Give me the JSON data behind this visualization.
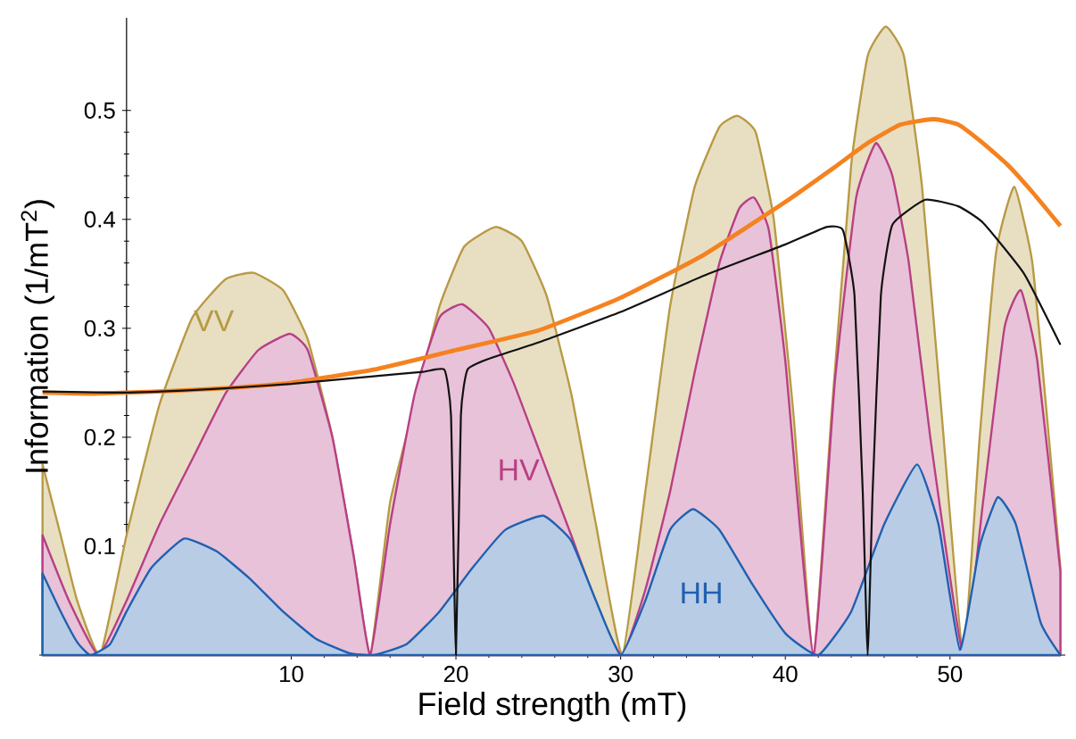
{
  "chart_data": {
    "type": "area",
    "xlabel": "Field strength (mT)",
    "ylabel": "Information (1/mT$^{2}$)",
    "xlim": [
      -5.3,
      57
    ],
    "ylim": [
      0,
      0.585
    ],
    "xticks": [
      10,
      20,
      30,
      40,
      50
    ],
    "yticks": [
      0.1,
      0.2,
      0.3,
      0.4,
      0.5
    ],
    "legend": false,
    "series": [
      {
        "name": "VV",
        "type": "area",
        "color": "#b89a45",
        "x": [
          -5.1,
          -4,
          -3,
          -1.6,
          0,
          2,
          4,
          6,
          7.7,
          9.5,
          11,
          12.5,
          13.8,
          14.8,
          16,
          17.5,
          19,
          20.5,
          22.4,
          24,
          25.5,
          27,
          28.5,
          30.1,
          31.5,
          33,
          34.5,
          36,
          37.1,
          38.2,
          39.3,
          40.5,
          41.7,
          42.8,
          44,
          45,
          46.1,
          47.2,
          48.3,
          49.5,
          50.8,
          51.8,
          52.8,
          53.9,
          55,
          56,
          56.7
        ],
        "values": [
          0.175,
          0.11,
          0.05,
          0,
          0.11,
          0.23,
          0.31,
          0.345,
          0.351,
          0.335,
          0.29,
          0.2,
          0.09,
          0,
          0.14,
          0.23,
          0.32,
          0.375,
          0.393,
          0.38,
          0.33,
          0.24,
          0.12,
          0,
          0.15,
          0.32,
          0.43,
          0.485,
          0.495,
          0.48,
          0.4,
          0.22,
          0,
          0.22,
          0.45,
          0.55,
          0.577,
          0.55,
          0.43,
          0.22,
          0,
          0.2,
          0.37,
          0.43,
          0.36,
          0.2,
          0.08
        ]
      },
      {
        "name": "HV",
        "type": "area",
        "color": "#b83f86",
        "x": [
          -5.1,
          -3.5,
          -1.7,
          0,
          2,
          4,
          6,
          8,
          9.9,
          11,
          12.5,
          13.8,
          14.8,
          16,
          17.5,
          19,
          20.4,
          22,
          23.5,
          25,
          27,
          28.7,
          30.1,
          31.5,
          33,
          34.5,
          36,
          37.2,
          38.1,
          39,
          40,
          41.7,
          43,
          44.3,
          45.5,
          46.5,
          47.5,
          48.8,
          50.8,
          52,
          53.3,
          54.3,
          55.3,
          56.7
        ],
        "values": [
          0.11,
          0.05,
          0,
          0.05,
          0.12,
          0.18,
          0.24,
          0.28,
          0.295,
          0.28,
          0.2,
          0.09,
          0,
          0.12,
          0.24,
          0.31,
          0.322,
          0.3,
          0.25,
          0.19,
          0.11,
          0.04,
          0,
          0.06,
          0.15,
          0.26,
          0.36,
          0.41,
          0.42,
          0.39,
          0.27,
          0,
          0.25,
          0.42,
          0.47,
          0.44,
          0.36,
          0.2,
          0,
          0.14,
          0.3,
          0.335,
          0.27,
          0.077
        ]
      },
      {
        "name": "HH",
        "type": "area",
        "color": "#2060b0",
        "x": [
          -5.1,
          -4,
          -3,
          -2.2,
          -1,
          0,
          1.5,
          3.5,
          5.5,
          7.5,
          9.5,
          11.5,
          13.5,
          15,
          17,
          19,
          21,
          23,
          25.3,
          27,
          28.5,
          30,
          31.5,
          33,
          34.4,
          36,
          38,
          40,
          42,
          44,
          46,
          48,
          49.3,
          50.6,
          51.8,
          52.9,
          54,
          55.5,
          56.7
        ],
        "values": [
          0.075,
          0.04,
          0.012,
          0,
          0.01,
          0.04,
          0.08,
          0.107,
          0.095,
          0.07,
          0.04,
          0.015,
          0.002,
          0,
          0.01,
          0.04,
          0.08,
          0.115,
          0.128,
          0.105,
          0.05,
          0,
          0.05,
          0.115,
          0.134,
          0.115,
          0.065,
          0.02,
          0,
          0.04,
          0.12,
          0.175,
          0.12,
          0.005,
          0.1,
          0.145,
          0.12,
          0.03,
          0
        ]
      },
      {
        "type": "line",
        "color": "#f58220",
        "x": [
          -5.1,
          -2,
          2,
          6,
          10,
          15,
          20,
          25,
          30,
          35,
          40,
          43,
          45,
          47,
          49,
          50.5,
          52,
          53.5,
          55,
          56.7
        ],
        "values": [
          0.241,
          0.24,
          0.242,
          0.245,
          0.25,
          0.262,
          0.28,
          0.298,
          0.328,
          0.367,
          0.416,
          0.448,
          0.47,
          0.487,
          0.492,
          0.487,
          0.47,
          0.45,
          0.425,
          0.394
        ]
      },
      {
        "type": "line",
        "color": "#111111",
        "x": [
          -5.1,
          0,
          5,
          10,
          15,
          18,
          19.3,
          19.7,
          20,
          20.3,
          20.7,
          22,
          25,
          30,
          35,
          40,
          42.5,
          43.5,
          44.2,
          44.7,
          45,
          45.3,
          45.8,
          46.5,
          48.5,
          50.5,
          52,
          54.5,
          56.7
        ],
        "values": [
          0.242,
          0.241,
          0.244,
          0.249,
          0.256,
          0.26,
          0.262,
          0.22,
          0,
          0.22,
          0.262,
          0.272,
          0.287,
          0.315,
          0.348,
          0.377,
          0.393,
          0.39,
          0.33,
          0.15,
          0,
          0.15,
          0.33,
          0.395,
          0.418,
          0.412,
          0.397,
          0.35,
          0.285
        ]
      }
    ]
  }
}
